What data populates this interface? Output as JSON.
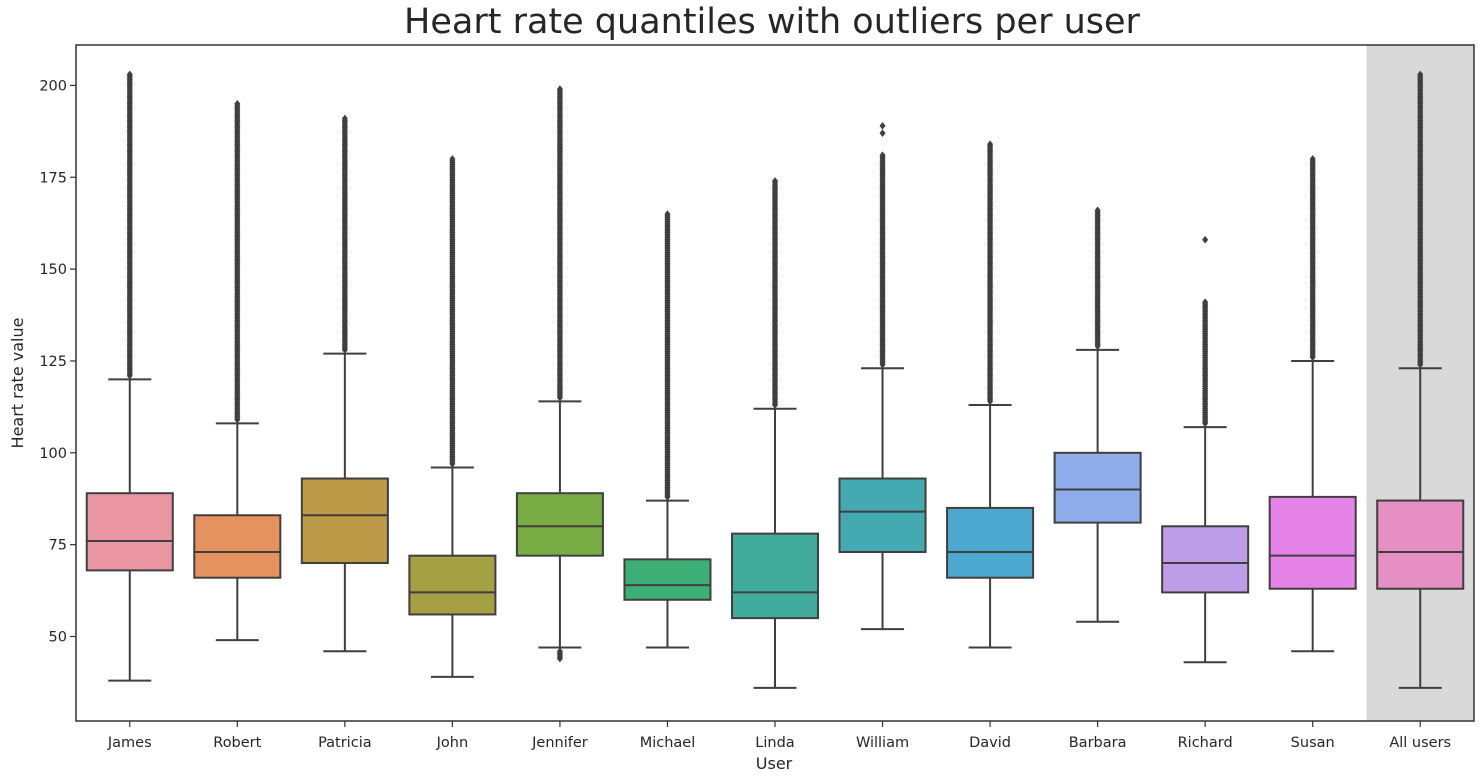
{
  "chart_data": {
    "type": "box",
    "title": "Heart rate quantiles with outliers per user",
    "xlabel": "User",
    "ylabel": "Heart rate value",
    "ylim": [
      27,
      211
    ],
    "yticks": [
      50,
      75,
      100,
      125,
      150,
      175,
      200
    ],
    "grid": false,
    "highlight_category": "All users",
    "colors": {
      "highlight_band": "#d9d9d9",
      "line": "#3f3f3f",
      "axis": "#333333"
    },
    "series": [
      {
        "category": "James",
        "color": "#ea96a3",
        "whisker_low": 38,
        "q1": 68,
        "median": 76,
        "q3": 89,
        "whisker_high": 120,
        "outliers_range": [
          121,
          203
        ]
      },
      {
        "category": "Robert",
        "color": "#e6925e",
        "whisker_low": 49,
        "q1": 66,
        "median": 73,
        "q3": 83,
        "whisker_high": 108,
        "outliers_range": [
          109,
          195
        ]
      },
      {
        "category": "Patricia",
        "color": "#bd9a47",
        "whisker_low": 46,
        "q1": 70,
        "median": 83,
        "q3": 93,
        "whisker_high": 127,
        "outliers_range": [
          128,
          191
        ]
      },
      {
        "category": "John",
        "color": "#a5a043",
        "whisker_low": 39,
        "q1": 56,
        "median": 62,
        "q3": 72,
        "whisker_high": 96,
        "outliers_range": [
          97,
          180
        ]
      },
      {
        "category": "Jennifer",
        "color": "#7aac45",
        "whisker_low": 47,
        "q1": 72,
        "median": 80,
        "q3": 89,
        "whisker_high": 114,
        "outliers_range": [
          115,
          199
        ],
        "low_outliers_range": [
          44,
          46
        ]
      },
      {
        "category": "Michael",
        "color": "#3dae76",
        "whisker_low": 47,
        "q1": 60,
        "median": 64,
        "q3": 71,
        "whisker_high": 87,
        "outliers_range": [
          88,
          165
        ]
      },
      {
        "category": "Linda",
        "color": "#42ac9c",
        "whisker_low": 36,
        "q1": 55,
        "median": 62,
        "q3": 78,
        "whisker_high": 112,
        "outliers_range": [
          113,
          174
        ]
      },
      {
        "category": "William",
        "color": "#44a9b0",
        "whisker_low": 52,
        "q1": 73,
        "median": 84,
        "q3": 93,
        "whisker_high": 123,
        "outliers_range": [
          124,
          181
        ],
        "extra_outliers": [
          187,
          189
        ]
      },
      {
        "category": "David",
        "color": "#4ca8ce",
        "whisker_low": 47,
        "q1": 66,
        "median": 73,
        "q3": 85,
        "whisker_high": 113,
        "outliers_range": [
          114,
          184
        ]
      },
      {
        "category": "Barbara",
        "color": "#8eadea",
        "whisker_low": 54,
        "q1": 81,
        "median": 90,
        "q3": 100,
        "whisker_high": 128,
        "outliers_range": [
          129,
          166
        ]
      },
      {
        "category": "Richard",
        "color": "#be9de8",
        "whisker_low": 43,
        "q1": 62,
        "median": 70,
        "q3": 80,
        "whisker_high": 107,
        "outliers_range": [
          108,
          141
        ],
        "extra_outliers": [
          158
        ]
      },
      {
        "category": "Susan",
        "color": "#e683e8",
        "whisker_low": 46,
        "q1": 63,
        "median": 72,
        "q3": 88,
        "whisker_high": 125,
        "outliers_range": [
          126,
          180
        ]
      },
      {
        "category": "All users",
        "color": "#e68fc2",
        "whisker_low": 36,
        "q1": 63,
        "median": 73,
        "q3": 87,
        "whisker_high": 123,
        "outliers_range": [
          124,
          203
        ]
      }
    ]
  }
}
